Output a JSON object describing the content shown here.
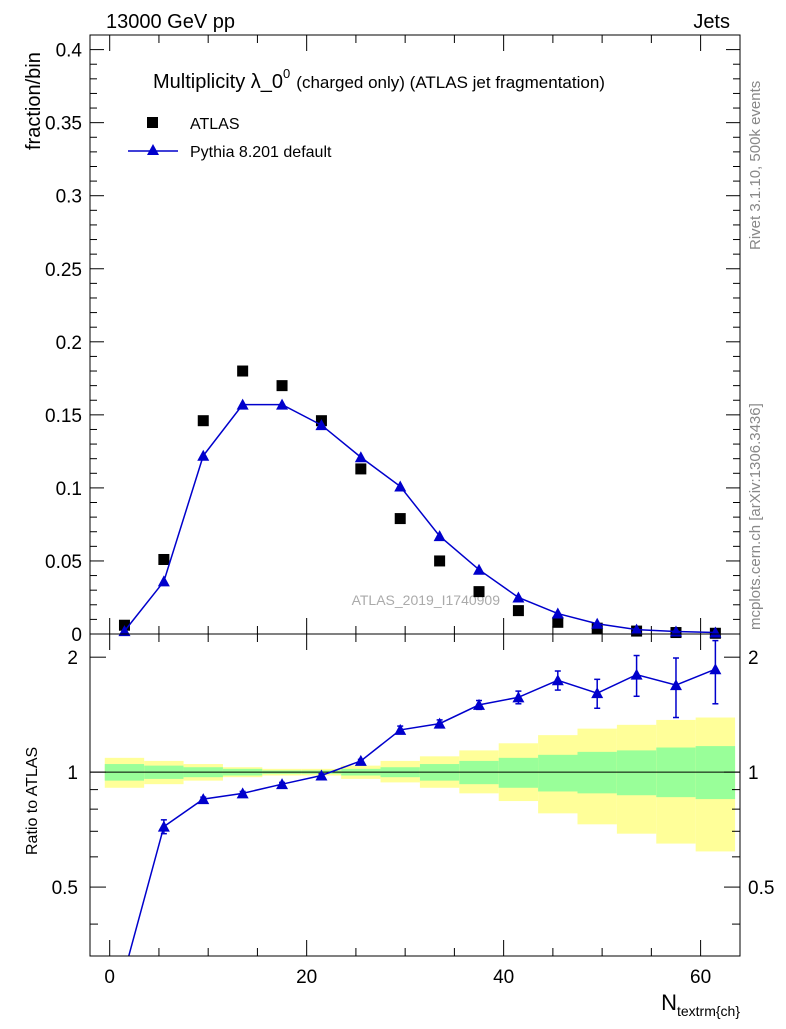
{
  "header": {
    "left": "13000 GeV pp",
    "right": "Jets"
  },
  "side": {
    "rivet": "Rivet 3.1.10,  500k events",
    "mcplots": "mcplots.cern.ch [arXiv:1306.3436]"
  },
  "colors": {
    "data": "#000000",
    "mc": "#0000cc",
    "band_inner": "#99ff99",
    "band_outer": "#ffff99"
  },
  "chart_data": [
    {
      "type": "scatter",
      "title_main": "Multiplicity λ_0",
      "title_sup": "0",
      "title_rest": "(charged only) (ATLAS jet fragmentation)",
      "ylabel": "fraction/bin",
      "xlabel_main": "N",
      "xlabel_sub": "textrm{ch}",
      "watermark": "ATLAS_2019_I1740909",
      "xlim": [
        -2,
        64
      ],
      "ylim": [
        0,
        0.41
      ],
      "xticks": [
        0,
        20,
        40,
        60
      ],
      "yticks": [
        0,
        0.05,
        0.1,
        0.15,
        0.2,
        0.25,
        0.3,
        0.35,
        0.4
      ],
      "ytick_labels": [
        "0",
        "0.05",
        "0.1",
        "0.15",
        "0.2",
        "0.25",
        "0.3",
        "0.35",
        "0.4"
      ],
      "legend_position": "top-left",
      "series": [
        {
          "name": "ATLAS",
          "marker": "square",
          "x": [
            1.5,
            5.5,
            9.5,
            13.5,
            17.5,
            21.5,
            25.5,
            29.5,
            33.5,
            37.5,
            41.5,
            45.5,
            49.5,
            53.5,
            57.5,
            61.5
          ],
          "y": [
            0.006,
            0.051,
            0.146,
            0.18,
            0.17,
            0.146,
            0.113,
            0.079,
            0.05,
            0.029,
            0.016,
            0.008,
            0.004,
            0.002,
            0.001,
            0.0005
          ]
        },
        {
          "name": "Pythia 8.201 default",
          "marker": "triangle",
          "x": [
            1.5,
            5.5,
            9.5,
            13.5,
            17.5,
            21.5,
            25.5,
            29.5,
            33.5,
            37.5,
            41.5,
            45.5,
            49.5,
            53.5,
            57.5,
            61.5
          ],
          "y": [
            0.002,
            0.036,
            0.122,
            0.157,
            0.157,
            0.143,
            0.121,
            0.101,
            0.067,
            0.044,
            0.025,
            0.014,
            0.007,
            0.003,
            0.0017,
            0.001
          ],
          "yerr": [
            0.0002,
            0.001,
            0.002,
            0.002,
            0.002,
            0.002,
            0.002,
            0.002,
            0.001,
            0.001,
            0.001,
            0.001,
            0.0005,
            0.0003,
            0.0002,
            0.0002
          ]
        }
      ]
    },
    {
      "type": "line",
      "ylabel": "Ratio to ATLAS",
      "xlim": [
        -2,
        64
      ],
      "ylim": [
        0.33,
        2.3
      ],
      "yscale": "log",
      "xticks": [
        0,
        20,
        40,
        60
      ],
      "yticks": [
        0.5,
        1,
        2
      ],
      "ytick_labels": [
        "0.5",
        "1",
        "2"
      ],
      "reference_line": 1,
      "bands": {
        "x_edges": [
          -0.5,
          3.5,
          7.5,
          11.5,
          15.5,
          19.5,
          23.5,
          27.5,
          31.5,
          35.5,
          39.5,
          43.5,
          47.5,
          51.5,
          55.5,
          59.5,
          63.5
        ],
        "inner_lo": [
          0.95,
          0.96,
          0.97,
          0.98,
          0.99,
          0.99,
          0.98,
          0.97,
          0.95,
          0.93,
          0.91,
          0.89,
          0.88,
          0.87,
          0.86,
          0.85
        ],
        "inner_hi": [
          1.05,
          1.04,
          1.03,
          1.02,
          1.01,
          1.01,
          1.02,
          1.03,
          1.05,
          1.07,
          1.09,
          1.11,
          1.13,
          1.14,
          1.16,
          1.17
        ],
        "outer_lo": [
          0.91,
          0.93,
          0.95,
          0.97,
          0.98,
          0.98,
          0.96,
          0.94,
          0.91,
          0.88,
          0.84,
          0.78,
          0.73,
          0.69,
          0.65,
          0.62
        ],
        "outer_hi": [
          1.09,
          1.07,
          1.05,
          1.03,
          1.02,
          1.02,
          1.04,
          1.07,
          1.1,
          1.14,
          1.19,
          1.25,
          1.3,
          1.33,
          1.37,
          1.39
        ]
      },
      "series": [
        {
          "name": "Pythia 8.201 default",
          "x": [
            1.5,
            5.5,
            9.5,
            13.5,
            17.5,
            21.5,
            25.5,
            29.5,
            33.5,
            37.5,
            41.5,
            45.5,
            49.5,
            53.5,
            57.5,
            61.5
          ],
          "y": [
            0.3,
            0.72,
            0.85,
            0.88,
            0.93,
            0.98,
            1.07,
            1.29,
            1.34,
            1.5,
            1.57,
            1.74,
            1.61,
            1.8,
            1.69,
            1.86
          ],
          "yerr": [
            0.01,
            0.03,
            0.01,
            0.01,
            0.01,
            0.01,
            0.01,
            0.03,
            0.03,
            0.04,
            0.06,
            0.1,
            0.14,
            0.22,
            0.3,
            0.35
          ]
        }
      ]
    }
  ]
}
